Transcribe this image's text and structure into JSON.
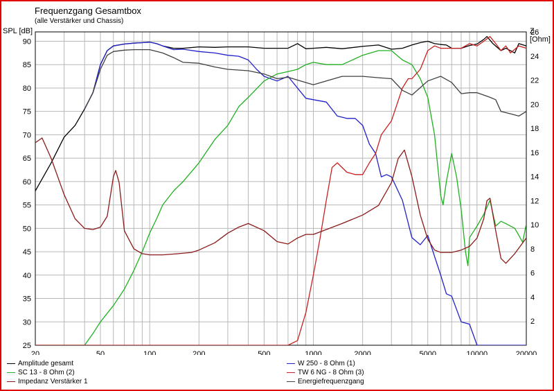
{
  "chart_data": {
    "type": "line",
    "title": "Frequenzgang Gesamtbox",
    "subtitle": "(alle Verstärker und Chassis)",
    "ylabel": "SPL [dB]",
    "y2label": "Z [Ohm]",
    "xscale": "log",
    "xlim": [
      20,
      20000
    ],
    "ylim": [
      25,
      92
    ],
    "y2lim": [
      0,
      26
    ],
    "grid": true,
    "xticks": [
      {
        "v": 20,
        "label": "20"
      },
      {
        "v": 50,
        "label": "50"
      },
      {
        "v": 100,
        "label": "100"
      },
      {
        "v": 200,
        "label": "200"
      },
      {
        "v": 500,
        "label": "500"
      },
      {
        "v": 1000,
        "label": "1000"
      },
      {
        "v": 2000,
        "label": "2000"
      },
      {
        "v": 5000,
        "label": "5000"
      },
      {
        "v": 10000,
        "label": "10000"
      },
      {
        "v": 20000,
        "label": "20000"
      }
    ],
    "yticks": [
      {
        "v": 25,
        "label": "25"
      },
      {
        "v": 30,
        "label": "30"
      },
      {
        "v": 35,
        "label": "35"
      },
      {
        "v": 40,
        "label": "40"
      },
      {
        "v": 45,
        "label": "45"
      },
      {
        "v": 50,
        "label": "50"
      },
      {
        "v": 55,
        "label": "55"
      },
      {
        "v": 60,
        "label": "60"
      },
      {
        "v": 65,
        "label": "65"
      },
      {
        "v": 70,
        "label": "70"
      },
      {
        "v": 75,
        "label": "75"
      },
      {
        "v": 80,
        "label": "80"
      },
      {
        "v": 85,
        "label": "85"
      },
      {
        "v": 90,
        "label": "90"
      }
    ],
    "y2ticks": [
      {
        "v": 2,
        "label": "2"
      },
      {
        "v": 4,
        "label": "4"
      },
      {
        "v": 6,
        "label": "6"
      },
      {
        "v": 8,
        "label": "8"
      },
      {
        "v": 10,
        "label": "10"
      },
      {
        "v": 12,
        "label": "12"
      },
      {
        "v": 14,
        "label": "14"
      },
      {
        "v": 16,
        "label": "16"
      },
      {
        "v": 18,
        "label": "18"
      },
      {
        "v": 20,
        "label": "20"
      },
      {
        "v": 22,
        "label": "22"
      },
      {
        "v": 24,
        "label": "24"
      },
      {
        "v": 26,
        "label": "26"
      }
    ],
    "series": [
      {
        "name": "Amplitude gesamt",
        "color": "#000000",
        "axis": "left",
        "x": [
          20,
          25,
          30,
          35,
          40,
          45,
          50,
          55,
          60,
          70,
          80,
          90,
          100,
          110,
          120,
          140,
          160,
          200,
          250,
          300,
          400,
          500,
          600,
          700,
          800,
          900,
          1000,
          1200,
          1500,
          2000,
          2500,
          3000,
          3500,
          4000,
          4500,
          5000,
          5500,
          6000,
          6500,
          7000,
          8000,
          9000,
          10000,
          11000,
          11500,
          12500,
          14000,
          15000,
          17000,
          18000,
          20000
        ],
        "y": [
          58,
          64,
          69.5,
          72,
          75.5,
          79,
          85,
          88,
          89,
          89.4,
          89.6,
          89.7,
          89.8,
          89.5,
          89,
          88.5,
          88.5,
          88.8,
          88.7,
          88.8,
          88.8,
          88.5,
          88.5,
          88.5,
          89.5,
          88.4,
          88.5,
          88.7,
          88.4,
          88.9,
          89.2,
          88.3,
          88.5,
          89.2,
          89.7,
          90,
          89.5,
          89.3,
          89.2,
          88.5,
          88.5,
          89.1,
          89.4,
          90.4,
          91,
          89.5,
          88,
          88.5,
          87.5,
          89.5,
          89
        ]
      },
      {
        "name": "W 250 - 8 Ohm (1)",
        "color": "#2020c8",
        "axis": "left",
        "x": [
          40,
          45,
          50,
          55,
          60,
          70,
          80,
          90,
          100,
          110,
          120,
          140,
          160,
          200,
          250,
          300,
          350,
          400,
          450,
          500,
          600,
          700,
          800,
          900,
          1000,
          1200,
          1400,
          1600,
          1800,
          2000,
          2200,
          2400,
          2600,
          2800,
          3000,
          3500,
          4000,
          4500,
          5000,
          5500,
          6000,
          6500,
          7000,
          8000,
          9000,
          10000,
          12000,
          15000,
          20000
        ],
        "y": [
          75.5,
          79,
          85,
          88,
          89,
          89.4,
          89.6,
          89.7,
          89.8,
          89.5,
          89,
          88.2,
          88.3,
          87.8,
          87.5,
          87,
          86.8,
          86,
          84,
          82.5,
          81.5,
          82.5,
          80,
          77.8,
          77.5,
          77,
          74,
          73.5,
          73.5,
          72,
          68,
          66,
          61,
          61.5,
          61,
          56,
          48,
          46.5,
          48.5,
          44,
          40,
          36,
          35.5,
          30,
          29.5,
          25,
          25,
          25,
          25
        ]
      },
      {
        "name": "SC 13 - 8 Ohm (2)",
        "color": "#20b020",
        "axis": "left",
        "x": [
          20,
          30,
          40,
          45,
          50,
          60,
          70,
          80,
          90,
          100,
          110,
          120,
          140,
          160,
          200,
          250,
          300,
          350,
          400,
          500,
          600,
          700,
          800,
          900,
          1000,
          1200,
          1500,
          2000,
          2500,
          3000,
          3500,
          4000,
          4500,
          5000,
          5500,
          6000,
          6200,
          6500,
          7000,
          7500,
          8000,
          8500,
          8800,
          9000,
          10000,
          11000,
          12000,
          13000,
          14000,
          15000,
          17000,
          18000,
          19000,
          20000
        ],
        "y": [
          25,
          25,
          25,
          27.5,
          30,
          33.5,
          37,
          41,
          45,
          49,
          52,
          55,
          58,
          60,
          64,
          69,
          72,
          76,
          78,
          81.5,
          83,
          83.5,
          84,
          85,
          85.5,
          85,
          85,
          87,
          88,
          88,
          86,
          85,
          82,
          78,
          70,
          57,
          55,
          60,
          66,
          61,
          54,
          45,
          42,
          48,
          50.5,
          53,
          56,
          50.5,
          51.5,
          51,
          50,
          48.5,
          47,
          51
        ]
      },
      {
        "name": "TW 6 NG - 8 Ohm (3)",
        "color": "#c82020",
        "axis": "left",
        "x": [
          20,
          500,
          700,
          800,
          900,
          1000,
          1100,
          1200,
          1300,
          1400,
          1600,
          1800,
          2000,
          2200,
          2400,
          2600,
          3000,
          3500,
          3800,
          4000,
          4500,
          5000,
          5500,
          6000,
          7000,
          8000,
          9000,
          10000,
          11000,
          12000,
          13000,
          14000,
          15000,
          16000,
          18000,
          20000
        ],
        "y": [
          25,
          25,
          25,
          26,
          32,
          40,
          48,
          56,
          63,
          64,
          62,
          61.5,
          61.5,
          64,
          66,
          70,
          73,
          80,
          82,
          82,
          84,
          88,
          89,
          88.5,
          88.5,
          88.5,
          89.5,
          89,
          90,
          91,
          89.5,
          88,
          89,
          87.5,
          89,
          88.5
        ]
      },
      {
        "name": "Impedanz Verstärker 1",
        "color": "#8b1a1a",
        "axis": "right",
        "x": [
          20,
          22,
          25,
          30,
          35,
          40,
          45,
          50,
          55,
          60,
          62,
          65,
          70,
          80,
          90,
          100,
          120,
          150,
          180,
          200,
          250,
          300,
          350,
          400,
          500,
          600,
          700,
          800,
          900,
          1000,
          1200,
          1500,
          2000,
          2500,
          3000,
          3300,
          3600,
          4000,
          4500,
          5000,
          5500,
          6000,
          7000,
          8000,
          9000,
          10000,
          11000,
          11500,
          12000,
          13000,
          14000,
          15000,
          17000,
          20000
        ],
        "y": [
          16.8,
          17.2,
          15.5,
          12.5,
          10.5,
          9.7,
          9.6,
          9.8,
          10.7,
          14,
          14.5,
          13.5,
          9.5,
          8,
          7.6,
          7.5,
          7.5,
          7.6,
          7.7,
          7.9,
          8.5,
          9.3,
          9.8,
          10.1,
          9.5,
          8.6,
          8.4,
          8.9,
          9.2,
          9.2,
          9.6,
          10.1,
          10.8,
          11.6,
          13.5,
          15.5,
          16.2,
          14,
          10.8,
          8.8,
          7.9,
          7.7,
          7.7,
          7.9,
          8.2,
          8.9,
          10.5,
          12,
          12.2,
          9.5,
          7.2,
          6.8,
          7.6,
          8.9
        ]
      },
      {
        "name": "Energiefrequenzgang",
        "color": "#404040",
        "axis": "left",
        "x": [
          40,
          45,
          50,
          55,
          60,
          70,
          80,
          100,
          120,
          140,
          160,
          200,
          250,
          300,
          400,
          500,
          600,
          700,
          800,
          1000,
          1200,
          1500,
          2000,
          2500,
          3000,
          3500,
          4000,
          5000,
          6000,
          7000,
          8000,
          9000,
          10000,
          11000,
          12000,
          13000,
          14000,
          16000,
          18000,
          20000
        ],
        "y": [
          75.5,
          79,
          84,
          87,
          87.8,
          88.1,
          88.2,
          88.2,
          87.5,
          86.5,
          85.5,
          85.3,
          84.5,
          84,
          83.7,
          83,
          82,
          82.3,
          81.7,
          80.7,
          81.5,
          82.5,
          82.5,
          82.2,
          82,
          79.5,
          78.5,
          81.5,
          82.5,
          81.2,
          78.8,
          79,
          79,
          78.5,
          78,
          77.5,
          75,
          74.5,
          74,
          75
        ]
      }
    ],
    "legend": {
      "position": "bottom",
      "items": [
        {
          "label": "Amplitude gesamt",
          "color": "#000000"
        },
        {
          "label": "W 250 - 8 Ohm (1)",
          "color": "#2020c8"
        },
        {
          "label": "SC 13 - 8 Ohm (2)",
          "color": "#20b020"
        },
        {
          "label": "TW 6 NG - 8 Ohm (3)",
          "color": "#c82020"
        },
        {
          "label": "Impedanz Verstärker 1",
          "color": "#8b1a1a"
        },
        {
          "label": "Energiefrequenzgang",
          "color": "#404040"
        }
      ]
    }
  }
}
